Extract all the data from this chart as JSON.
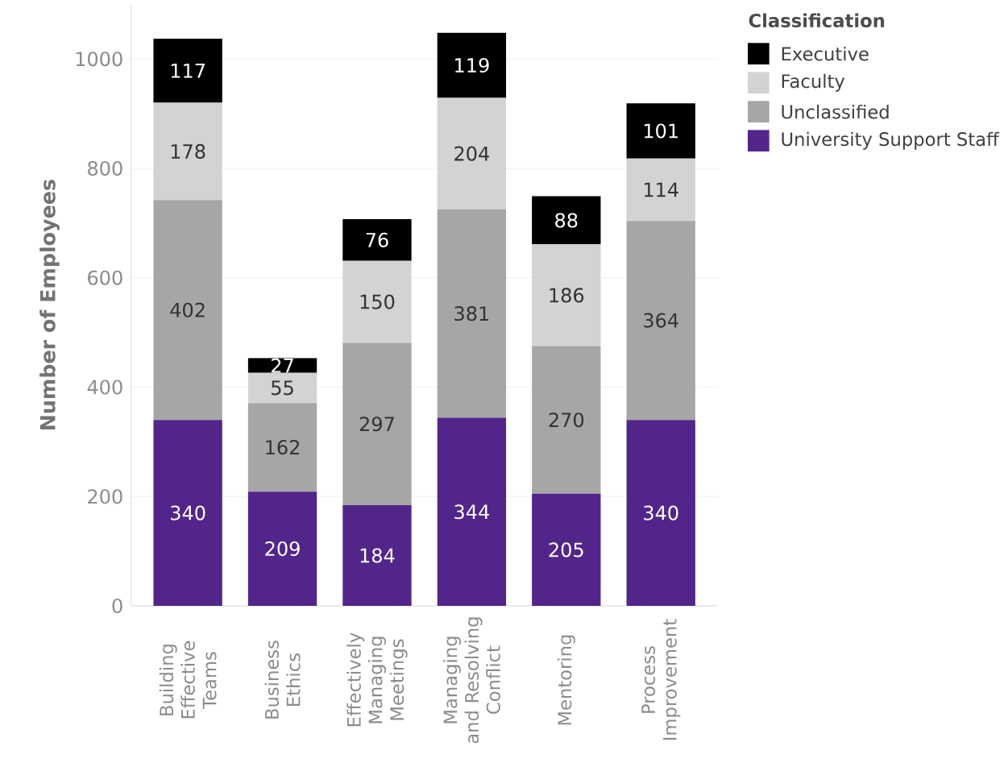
{
  "chart_data": {
    "type": "bar",
    "stacked": true,
    "ylabel": "Number of Employees",
    "legend_title": "Classification",
    "legend": "top right",
    "categories": [
      "Building Effective Teams",
      "Business Ethics",
      "Effectively Managing Meetings",
      "Managing and Resolving Conflict",
      "Mentoring",
      "Process Improvement"
    ],
    "series": [
      {
        "name": "University Support Staff",
        "color": "#52258a",
        "values": [
          340,
          209,
          184,
          344,
          205,
          340
        ]
      },
      {
        "name": "Unclassified",
        "color": "#a6a6a6",
        "values": [
          402,
          162,
          297,
          381,
          270,
          364
        ]
      },
      {
        "name": "Faculty",
        "color": "#d3d3d3",
        "values": [
          178,
          55,
          150,
          204,
          186,
          114
        ]
      },
      {
        "name": "Executive",
        "color": "#000000",
        "values": [
          117,
          27,
          76,
          119,
          88,
          101
        ]
      }
    ],
    "ylim": [
      0,
      1100
    ],
    "yticks": [
      0,
      200,
      400,
      600,
      800,
      1000
    ],
    "grid": "y",
    "data_labels": true
  }
}
